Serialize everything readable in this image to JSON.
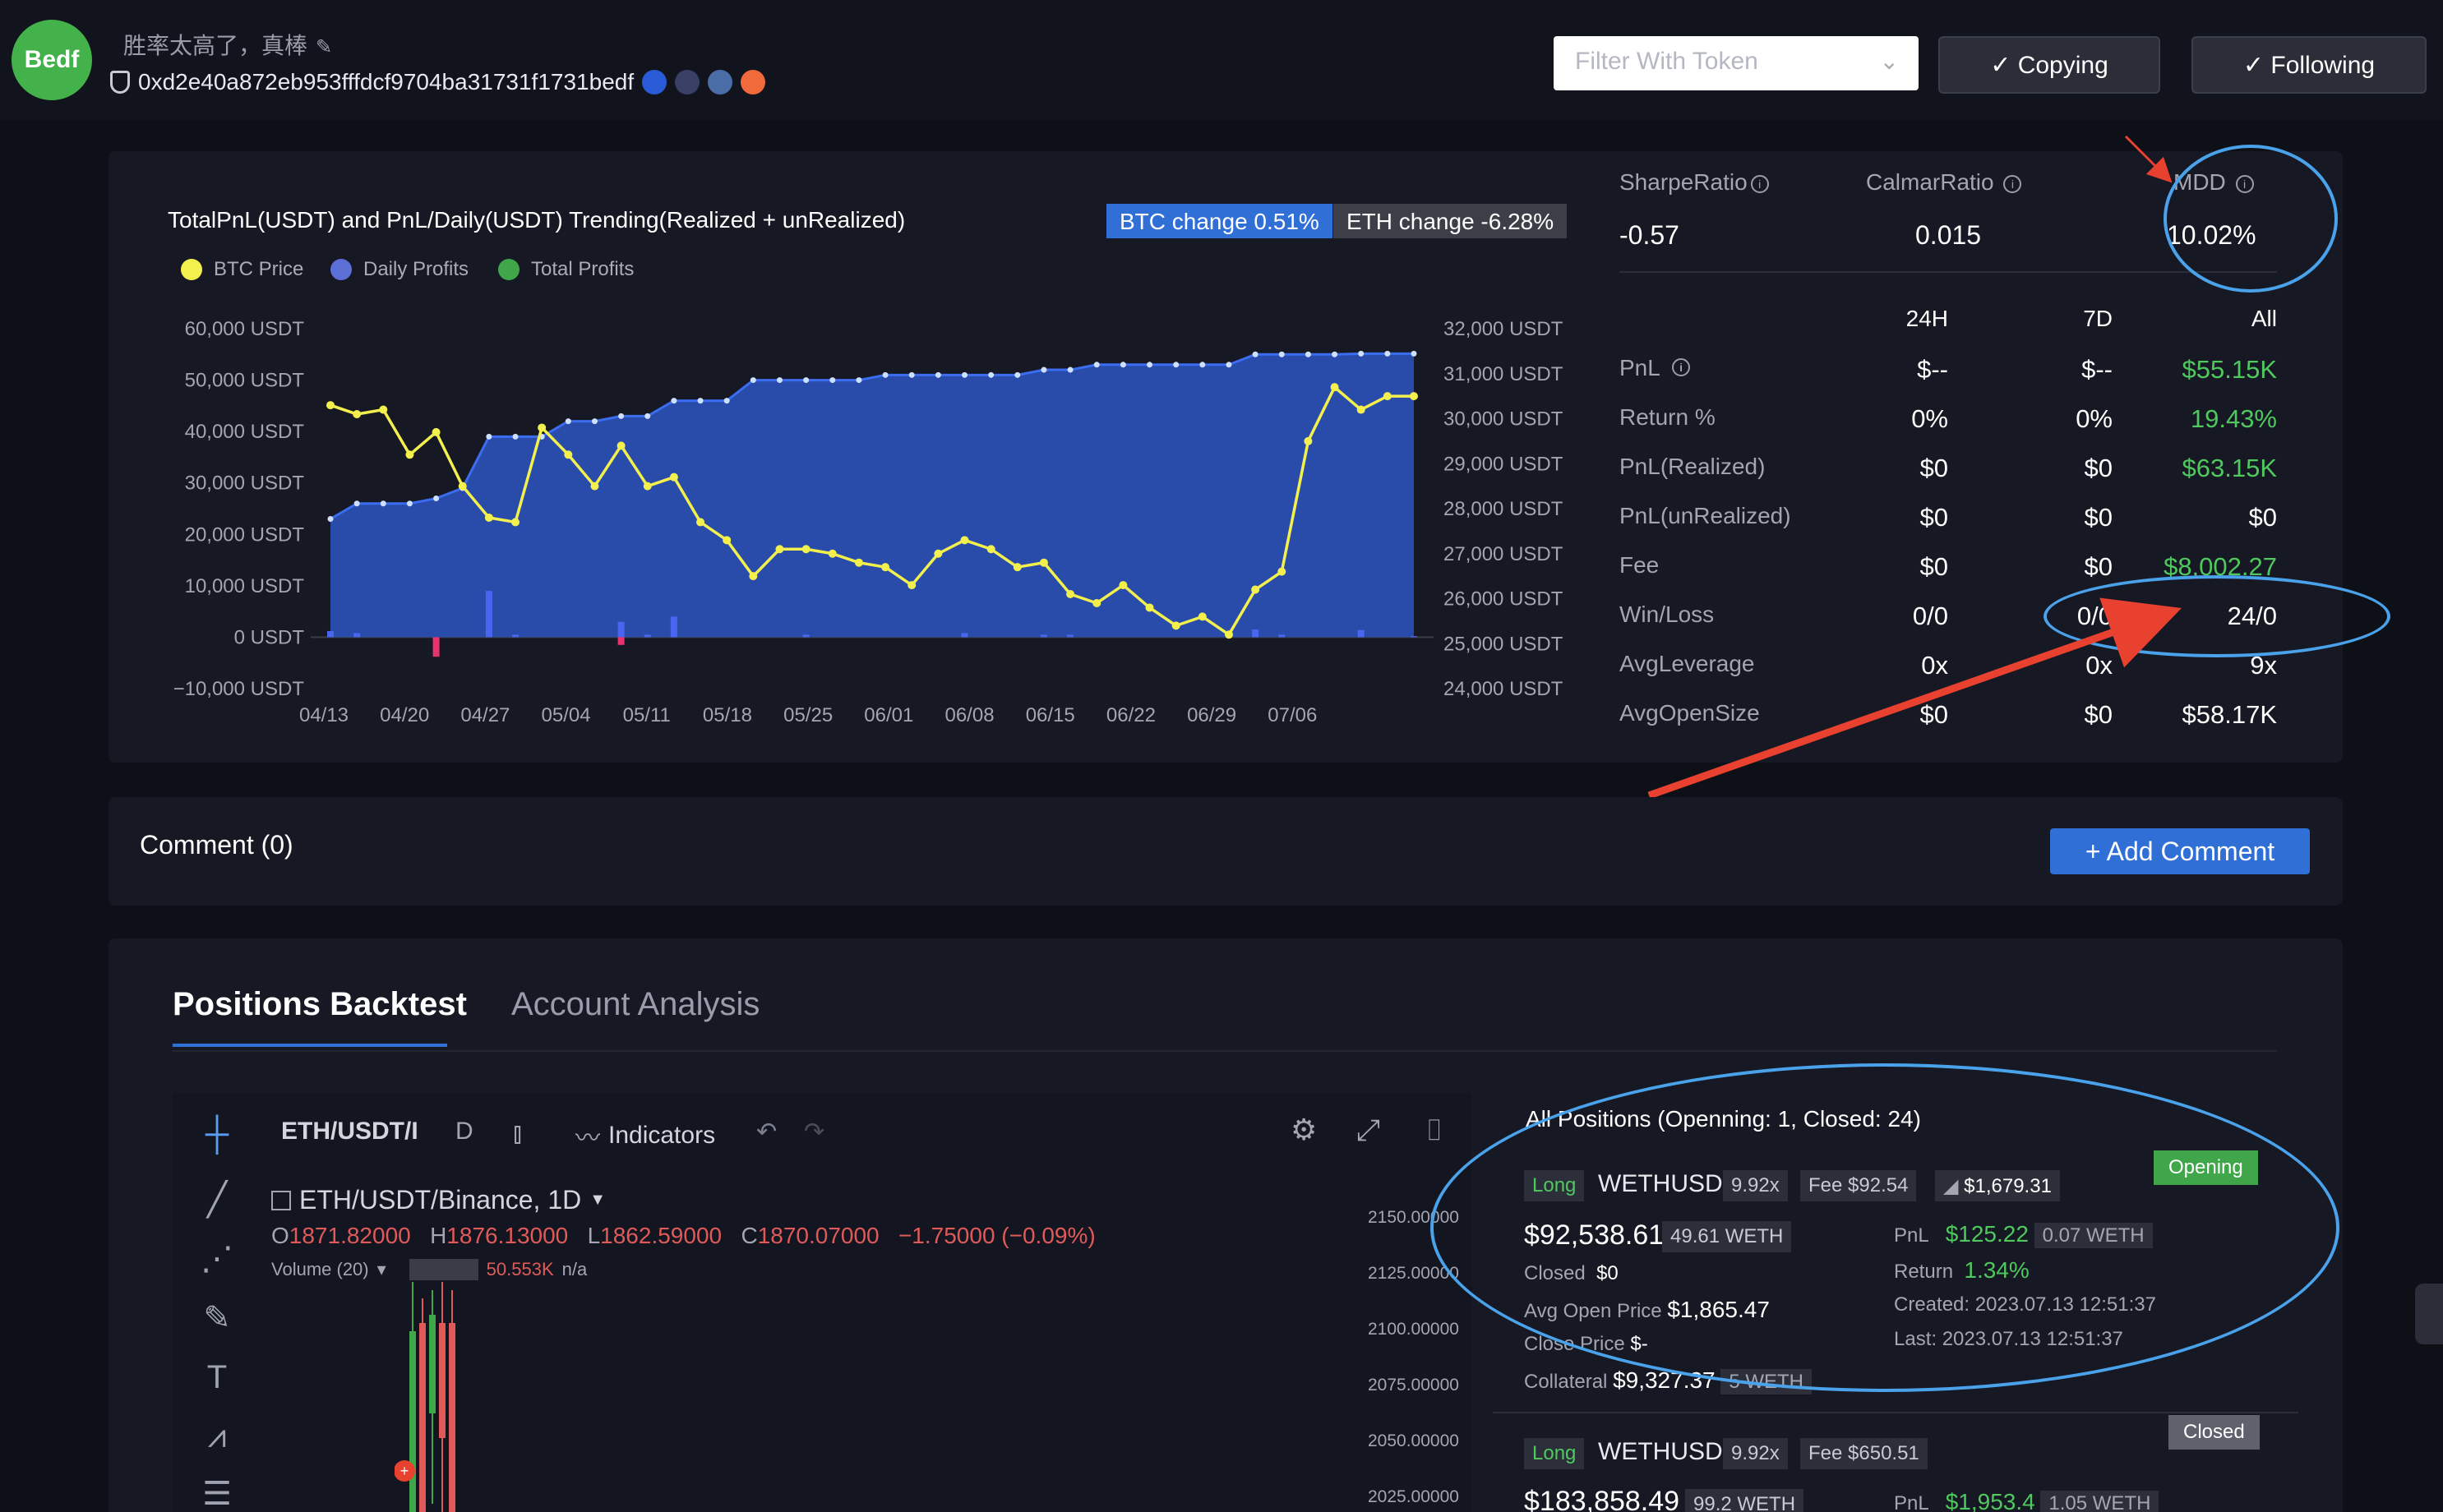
{
  "header": {
    "avatar_text": "Bedf",
    "nickname": "胜率太高了，真棒",
    "address": "0xd2e40a872eb953fffdcf9704ba31731f1731bedf",
    "filter_placeholder": "Filter With Token",
    "copying_label": "✓ Copying",
    "following_label": "✓ Following"
  },
  "chart": {
    "title": "TotalPnL(USDT) and PnL/Daily(USDT) Trending(Realized + unRealized)",
    "btc_change": "BTC change 0.51%",
    "eth_change": "ETH change -6.28%",
    "legend": [
      "BTC Price",
      "Daily Profits",
      "Total Profits"
    ]
  },
  "chart_data": {
    "type": "area",
    "title": "TotalPnL(USDT) and PnL/Daily(USDT) Trending(Realized + unRealized)",
    "x_ticks": [
      "04/13",
      "04/20",
      "04/27",
      "05/04",
      "05/11",
      "05/18",
      "05/25",
      "06/01",
      "06/08",
      "06/15",
      "06/22",
      "06/29",
      "07/06"
    ],
    "y_left_ticks": [
      "60,000 USDT",
      "50,000 USDT",
      "40,000 USDT",
      "30,000 USDT",
      "20,000 USDT",
      "10,000 USDT",
      "0 USDT",
      "−10,000 USDT"
    ],
    "y_left_lim": [
      -10000,
      60000
    ],
    "y_right_ticks": [
      "32,000 USDT",
      "31,000 USDT",
      "30,000 USDT",
      "29,000 USDT",
      "28,000 USDT",
      "27,000 USDT",
      "26,000 USDT",
      "25,000 USDT",
      "24,000 USDT"
    ],
    "y_right_lim": [
      24000,
      32000
    ],
    "colors": {
      "btc": "#f3f04e",
      "daily": "#5b6fd6",
      "total": "#2d55c8",
      "total_fill": "#2a4fb3",
      "neg": "#e8336e"
    },
    "series": [
      {
        "name": "Total Profits",
        "axis": "left",
        "values": [
          23000,
          26000,
          26000,
          26000,
          27000,
          29000,
          39000,
          39000,
          39000,
          42000,
          42000,
          43000,
          43000,
          46000,
          46000,
          46000,
          50000,
          50000,
          50000,
          50000,
          50000,
          51000,
          51000,
          51000,
          51000,
          51000,
          51000,
          52000,
          52000,
          53000,
          53000,
          53000,
          53000,
          53000,
          53000,
          55000,
          55000,
          55000,
          55000,
          55150,
          55150,
          55150
        ]
      },
      {
        "name": "BTC Price",
        "axis": "right",
        "values": [
          30300,
          30100,
          30200,
          29200,
          29700,
          28500,
          27800,
          27700,
          29800,
          29200,
          28500,
          29400,
          28500,
          28700,
          27700,
          27300,
          26500,
          27100,
          27100,
          27000,
          26800,
          26700,
          26300,
          27000,
          27300,
          27100,
          26700,
          26800,
          26100,
          25900,
          26300,
          25800,
          25400,
          25600,
          25200,
          26200,
          26600,
          29500,
          30700,
          30200,
          30500,
          30500
        ]
      },
      {
        "name": "Daily Profits",
        "axis": "left",
        "values": [
          1200,
          800,
          0,
          0,
          0,
          0,
          9000,
          500,
          0,
          0,
          0,
          3000,
          500,
          4000,
          0,
          0,
          0,
          0,
          500,
          0,
          0,
          0,
          0,
          0,
          800,
          0,
          0,
          500,
          500,
          0,
          0,
          0,
          0,
          0,
          0,
          1500,
          500,
          0,
          0,
          1400,
          0,
          200
        ]
      },
      {
        "name": "Daily Profits negative",
        "axis": "left",
        "values": [
          0,
          0,
          0,
          0,
          -3800,
          0,
          0,
          0,
          0,
          0,
          0,
          -1500,
          0,
          0,
          0,
          0,
          0,
          0,
          0,
          0,
          0,
          0,
          0,
          0,
          0,
          0,
          0,
          0,
          0,
          0,
          0,
          0,
          0,
          0,
          0,
          0,
          0,
          0,
          0,
          0,
          0,
          0
        ]
      }
    ]
  },
  "ratios": [
    {
      "label": "SharpeRatio",
      "value": "-0.57"
    },
    {
      "label": "CalmarRatio",
      "value": "0.015"
    },
    {
      "label": "MDD",
      "value": "10.02%"
    }
  ],
  "table": {
    "headers": [
      "24H",
      "7D",
      "All"
    ],
    "rows": [
      {
        "label": "PnL",
        "v": [
          "$--",
          "$--",
          "$55.15K"
        ],
        "green": [
          false,
          false,
          true
        ]
      },
      {
        "label": "Return %",
        "v": [
          "0%",
          "0%",
          "19.43%"
        ],
        "green": [
          false,
          false,
          true
        ]
      },
      {
        "label": "PnL(Realized)",
        "v": [
          "$0",
          "$0",
          "$63.15K"
        ],
        "green": [
          false,
          false,
          true
        ]
      },
      {
        "label": "PnL(unRealized)",
        "v": [
          "$0",
          "$0",
          "$0"
        ],
        "green": [
          false,
          false,
          false
        ]
      },
      {
        "label": "Fee",
        "v": [
          "$0",
          "$0",
          "$8,002.27"
        ],
        "green": [
          false,
          false,
          true
        ]
      },
      {
        "label": "Win/Loss",
        "v": [
          "0/0",
          "0/0",
          "24/0"
        ],
        "green": [
          false,
          false,
          false
        ]
      },
      {
        "label": "AvgLeverage",
        "v": [
          "0x",
          "0x",
          "9x"
        ],
        "green": [
          false,
          false,
          false
        ]
      },
      {
        "label": "AvgOpenSize",
        "v": [
          "$0",
          "$0",
          "$58.17K"
        ],
        "green": [
          false,
          false,
          false
        ]
      }
    ]
  },
  "comment": {
    "title": "Comment (0)",
    "add_label": "+ Add Comment"
  },
  "tabs": [
    "Positions Backtest",
    "Account Analysis"
  ],
  "tv": {
    "symbol": "ETH/USDT/I",
    "interval": "D",
    "indicators_label": "Indicators",
    "pair_title": "ETH/USDT/Binance, 1D",
    "open_k": "O",
    "open": "1871.82000",
    "high_k": "H",
    "high": "1876.13000",
    "low_k": "L",
    "low": "1862.59000",
    "close_k": "C",
    "close": "1870.07000",
    "change": "−1.75000 (−0.09%)",
    "volume_label": "Volume (20)",
    "volume_value": "50.553K",
    "volume_na": "n/a",
    "prices": [
      "2150.00000",
      "2125.00000",
      "2100.00000",
      "2075.00000",
      "2050.00000",
      "2025.00000"
    ]
  },
  "positions": {
    "title": "All Positions (Openning: 1, Closed: 24)",
    "items": [
      {
        "side": "Long",
        "symbol": "WETHUSD",
        "leverage": "9.92x",
        "fee": "Fee $92.54",
        "price_tag": "$1,679.31",
        "status": "Opening",
        "size": "$92,538.61",
        "size_weth": "49.61 WETH",
        "closed_k": "Closed",
        "closed": "$0",
        "avg_open_k": "Avg Open Price",
        "avg_open": "$1,865.47",
        "close_price_k": "Close Price",
        "close_price": "$-",
        "collateral_k": "Collateral",
        "collateral": "$9,327.37",
        "collateral_weth": "5 WETH",
        "pnl_k": "PnL",
        "pnl": "$125.22",
        "pnl_weth": "0.07 WETH",
        "return_k": "Return",
        "return": "1.34%",
        "created": "Created: 2023.07.13 12:51:37",
        "last": "Last: 2023.07.13 12:51:37"
      },
      {
        "side": "Long",
        "symbol": "WETHUSD",
        "leverage": "9.92x",
        "fee": "Fee $650.51",
        "status": "Closed",
        "size": "$183,858.49",
        "size_weth": "99.2 WETH",
        "pnl_k": "PnL",
        "pnl": "$1,953.4",
        "pnl_weth": "1.05 WETH"
      }
    ]
  }
}
